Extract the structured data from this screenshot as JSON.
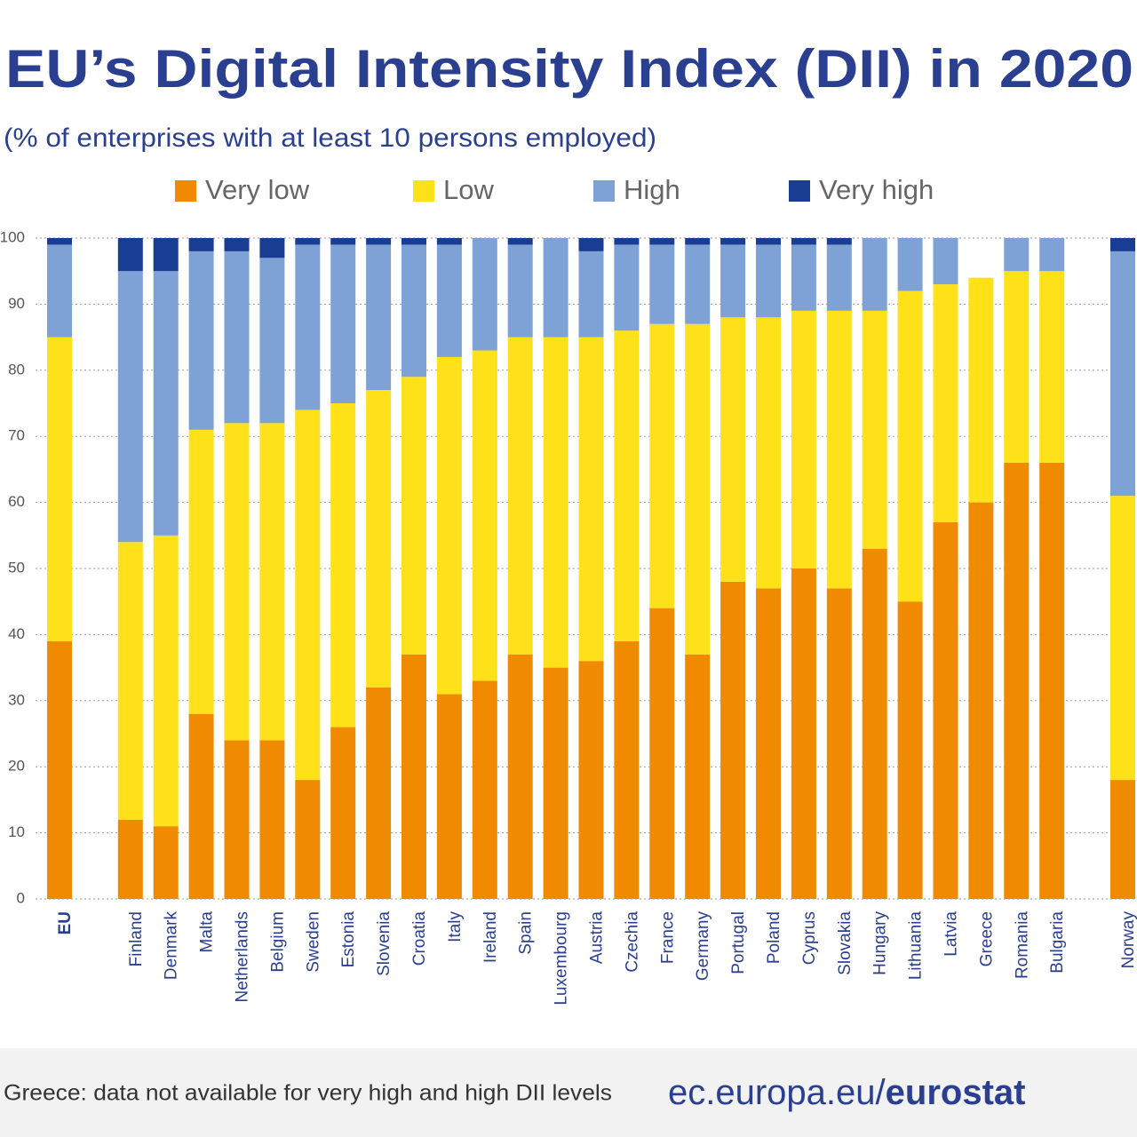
{
  "chart_data": {
    "type": "stacked-bar",
    "title": "EU’s Digital Intensity Index (DII) in 2020",
    "subtitle": "(% of enterprises with at least 10 persons employed)",
    "categories": [
      "EU",
      null,
      "Finland",
      "Denmark",
      "Malta",
      "Netherlands",
      "Belgium",
      "Sweden",
      "Estonia",
      "Slovenia",
      "Croatia",
      "Italy",
      "Ireland",
      "Spain",
      "Luxembourg",
      "Austria",
      "Czechia",
      "France",
      "Germany",
      "Portugal",
      "Poland",
      "Cyprus",
      "Slovakia",
      "Hungary",
      "Lithuania",
      "Latvia",
      "Greece",
      "Romania",
      "Bulgaria",
      null,
      "Norway"
    ],
    "series": [
      {
        "name": "Very low",
        "color": "#f08a00",
        "values": [
          39,
          null,
          12,
          11,
          28,
          24,
          24,
          18,
          26,
          32,
          37,
          31,
          33,
          37,
          35,
          36,
          39,
          44,
          37,
          48,
          47,
          50,
          47,
          53,
          45,
          57,
          60,
          66,
          66,
          null,
          18
        ]
      },
      {
        "name": "Low",
        "color": "#ffe11a",
        "values": [
          46,
          null,
          42,
          44,
          43,
          48,
          48,
          56,
          49,
          45,
          42,
          51,
          50,
          48,
          50,
          49,
          47,
          43,
          50,
          40,
          41,
          39,
          42,
          36,
          47,
          36,
          34,
          29,
          29,
          null,
          43
        ]
      },
      {
        "name": "High",
        "color": "#7fa2d6",
        "values": [
          14,
          null,
          41,
          40,
          27,
          26,
          25,
          25,
          24,
          22,
          20,
          17,
          17,
          14,
          15,
          13,
          13,
          12,
          12,
          11,
          11,
          10,
          10,
          11,
          8,
          7,
          null,
          5,
          5,
          null,
          37
        ]
      },
      {
        "name": "Very high",
        "color": "#1a3d94",
        "values": [
          1,
          null,
          5,
          5,
          2,
          2,
          3,
          1,
          1,
          1,
          1,
          1,
          0,
          1,
          0,
          2,
          1,
          1,
          1,
          1,
          1,
          1,
          1,
          0,
          0,
          0,
          null,
          0,
          0,
          null,
          2
        ]
      }
    ],
    "ylim": [
      0,
      100
    ],
    "yticks": [
      0,
      10,
      20,
      30,
      40,
      50,
      60,
      70,
      80,
      90,
      100
    ],
    "grid": true,
    "note": "Greece: data not available for very high and high DII levels",
    "source": [
      "ec.europa.eu/",
      "eurostat"
    ]
  }
}
